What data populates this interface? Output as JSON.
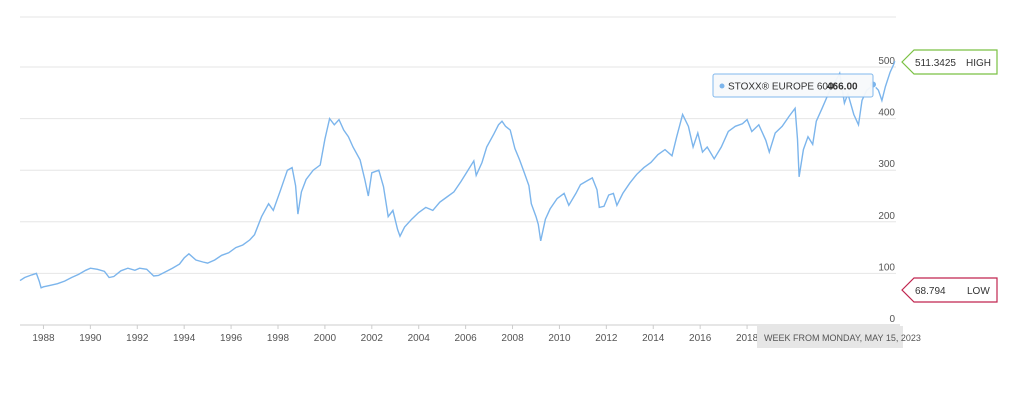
{
  "chart_data": {
    "type": "line",
    "series": [
      {
        "name": "STOXX® EUROPE 600",
        "color": "#7cb5ec",
        "points": [
          [
            1987.0,
            86
          ],
          [
            1987.2,
            92
          ],
          [
            1987.5,
            97
          ],
          [
            1987.7,
            100
          ],
          [
            1987.82,
            85
          ],
          [
            1987.9,
            72
          ],
          [
            1988.0,
            74
          ],
          [
            1988.3,
            77
          ],
          [
            1988.6,
            80
          ],
          [
            1988.9,
            85
          ],
          [
            1989.2,
            92
          ],
          [
            1989.5,
            98
          ],
          [
            1989.8,
            106
          ],
          [
            1990.0,
            110
          ],
          [
            1990.3,
            108
          ],
          [
            1990.6,
            104
          ],
          [
            1990.8,
            92
          ],
          [
            1991.0,
            94
          ],
          [
            1991.3,
            105
          ],
          [
            1991.6,
            110
          ],
          [
            1991.9,
            106
          ],
          [
            1992.1,
            110
          ],
          [
            1992.4,
            108
          ],
          [
            1992.7,
            95
          ],
          [
            1992.9,
            96
          ],
          [
            1993.2,
            103
          ],
          [
            1993.5,
            110
          ],
          [
            1993.8,
            118
          ],
          [
            1994.0,
            130
          ],
          [
            1994.2,
            138
          ],
          [
            1994.5,
            126
          ],
          [
            1994.8,
            122
          ],
          [
            1995.0,
            120
          ],
          [
            1995.3,
            126
          ],
          [
            1995.6,
            135
          ],
          [
            1995.9,
            140
          ],
          [
            1996.2,
            150
          ],
          [
            1996.5,
            155
          ],
          [
            1996.8,
            165
          ],
          [
            1997.0,
            175
          ],
          [
            1997.3,
            210
          ],
          [
            1997.6,
            235
          ],
          [
            1997.8,
            222
          ],
          [
            1998.1,
            260
          ],
          [
            1998.4,
            300
          ],
          [
            1998.6,
            305
          ],
          [
            1998.75,
            270
          ],
          [
            1998.85,
            215
          ],
          [
            1999.0,
            258
          ],
          [
            1999.2,
            282
          ],
          [
            1999.5,
            300
          ],
          [
            1999.8,
            310
          ],
          [
            2000.0,
            360
          ],
          [
            2000.2,
            400
          ],
          [
            2000.4,
            388
          ],
          [
            2000.6,
            398
          ],
          [
            2000.8,
            378
          ],
          [
            2001.0,
            365
          ],
          [
            2001.2,
            345
          ],
          [
            2001.5,
            320
          ],
          [
            2001.7,
            282
          ],
          [
            2001.85,
            250
          ],
          [
            2002.0,
            295
          ],
          [
            2002.3,
            300
          ],
          [
            2002.5,
            268
          ],
          [
            2002.7,
            210
          ],
          [
            2002.9,
            222
          ],
          [
            2003.1,
            185
          ],
          [
            2003.2,
            172
          ],
          [
            2003.4,
            190
          ],
          [
            2003.7,
            205
          ],
          [
            2004.0,
            218
          ],
          [
            2004.3,
            228
          ],
          [
            2004.6,
            222
          ],
          [
            2004.9,
            238
          ],
          [
            2005.2,
            248
          ],
          [
            2005.5,
            258
          ],
          [
            2005.8,
            278
          ],
          [
            2006.1,
            300
          ],
          [
            2006.35,
            318
          ],
          [
            2006.45,
            290
          ],
          [
            2006.7,
            315
          ],
          [
            2006.9,
            345
          ],
          [
            2007.2,
            370
          ],
          [
            2007.4,
            388
          ],
          [
            2007.55,
            395
          ],
          [
            2007.7,
            385
          ],
          [
            2007.9,
            378
          ],
          [
            2008.1,
            342
          ],
          [
            2008.3,
            320
          ],
          [
            2008.5,
            295
          ],
          [
            2008.7,
            270
          ],
          [
            2008.8,
            235
          ],
          [
            2009.0,
            210
          ],
          [
            2009.1,
            195
          ],
          [
            2009.2,
            163
          ],
          [
            2009.4,
            205
          ],
          [
            2009.6,
            225
          ],
          [
            2009.9,
            245
          ],
          [
            2010.2,
            255
          ],
          [
            2010.4,
            232
          ],
          [
            2010.7,
            255
          ],
          [
            2010.9,
            272
          ],
          [
            2011.2,
            280
          ],
          [
            2011.4,
            285
          ],
          [
            2011.6,
            262
          ],
          [
            2011.7,
            228
          ],
          [
            2011.9,
            230
          ],
          [
            2012.1,
            252
          ],
          [
            2012.3,
            255
          ],
          [
            2012.45,
            232
          ],
          [
            2012.7,
            255
          ],
          [
            2013.0,
            275
          ],
          [
            2013.3,
            292
          ],
          [
            2013.6,
            305
          ],
          [
            2013.9,
            315
          ],
          [
            2014.2,
            330
          ],
          [
            2014.5,
            340
          ],
          [
            2014.8,
            328
          ],
          [
            2015.0,
            365
          ],
          [
            2015.25,
            408
          ],
          [
            2015.5,
            385
          ],
          [
            2015.7,
            345
          ],
          [
            2015.9,
            372
          ],
          [
            2016.1,
            335
          ],
          [
            2016.3,
            345
          ],
          [
            2016.6,
            322
          ],
          [
            2016.9,
            345
          ],
          [
            2017.2,
            375
          ],
          [
            2017.5,
            385
          ],
          [
            2017.8,
            390
          ],
          [
            2018.0,
            398
          ],
          [
            2018.2,
            375
          ],
          [
            2018.5,
            388
          ],
          [
            2018.8,
            358
          ],
          [
            2018.95,
            335
          ],
          [
            2019.2,
            372
          ],
          [
            2019.5,
            385
          ],
          [
            2019.8,
            405
          ],
          [
            2020.05,
            420
          ],
          [
            2020.15,
            360
          ],
          [
            2020.22,
            287
          ],
          [
            2020.4,
            340
          ],
          [
            2020.6,
            365
          ],
          [
            2020.8,
            350
          ],
          [
            2020.95,
            395
          ],
          [
            2021.2,
            420
          ],
          [
            2021.5,
            452
          ],
          [
            2021.8,
            475
          ],
          [
            2021.95,
            488
          ],
          [
            2022.15,
            430
          ],
          [
            2022.3,
            448
          ],
          [
            2022.55,
            408
          ],
          [
            2022.75,
            388
          ],
          [
            2022.9,
            435
          ],
          [
            2023.1,
            455
          ],
          [
            2023.3,
            462
          ],
          [
            2023.37,
            466
          ],
          [
            2023.6,
            455
          ],
          [
            2023.75,
            435
          ],
          [
            2023.9,
            462
          ],
          [
            2024.1,
            490
          ],
          [
            2024.25,
            505
          ],
          [
            2024.3,
            511.3425
          ]
        ]
      }
    ],
    "x_tick_labels": [
      "1988",
      "1990",
      "1992",
      "1994",
      "1996",
      "1998",
      "2000",
      "2002",
      "2004",
      "2006",
      "2008",
      "2010",
      "2012",
      "2014",
      "2016",
      "2018"
    ],
    "y_tick_labels": [
      "0",
      "100",
      "200",
      "300",
      "400",
      "500"
    ],
    "xlim": [
      1987.0,
      2024.35
    ],
    "ylim": [
      0,
      500
    ],
    "grid": true,
    "high_flag": {
      "value": "511.3425",
      "label": "HIGH",
      "color": "#7ac143"
    },
    "low_flag": {
      "value": "68.794",
      "label": "LOW",
      "color": "#c0254f"
    },
    "tooltip": {
      "series": "STOXX® EUROPE 600:",
      "value": "466.00",
      "x": 2023.37,
      "y": 466
    },
    "crosshair_label": "WEEK FROM MONDAY, MAY 15, 2023"
  }
}
